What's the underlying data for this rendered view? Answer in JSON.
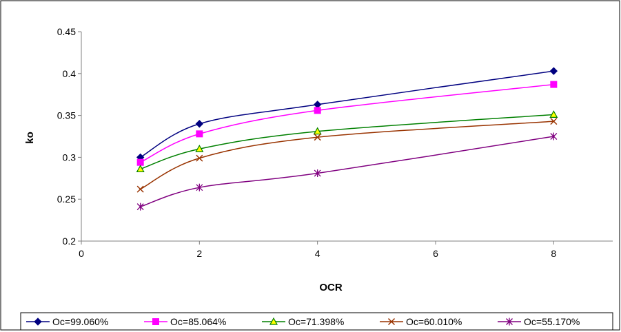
{
  "chart_data": {
    "type": "line",
    "title": "",
    "xlabel": "OCR",
    "ylabel": "ko",
    "xlim": [
      0,
      9
    ],
    "ylim": [
      0.2,
      0.45
    ],
    "x_ticks": [
      0,
      2,
      4,
      6,
      8
    ],
    "x_tick_labels": [
      "0",
      "2",
      "4",
      "6",
      "8"
    ],
    "y_ticks": [
      0.2,
      0.25,
      0.3,
      0.35,
      0.4,
      0.45
    ],
    "y_tick_labels": [
      "0.2",
      "0.25",
      "0.3",
      "0.35",
      "0.4",
      "0.45"
    ],
    "grid": false,
    "legend_position": "bottom",
    "smooth": true,
    "x": [
      1,
      2,
      4,
      8
    ],
    "series": [
      {
        "name": "Oc=99.060%",
        "values": [
          0.3,
          0.34,
          0.363,
          0.403
        ],
        "color": "#000080",
        "marker": "diamond"
      },
      {
        "name": "Oc=85.064%",
        "values": [
          0.294,
          0.328,
          0.356,
          0.387
        ],
        "color": "#FF00FF",
        "marker": "square"
      },
      {
        "name": "Oc=71.398%",
        "values": [
          0.286,
          0.31,
          0.331,
          0.351
        ],
        "color": "#008000",
        "marker": "triangle",
        "marker_fill": "#FFFF00"
      },
      {
        "name": "Oc=60.010%",
        "values": [
          0.262,
          0.299,
          0.324,
          0.343
        ],
        "color": "#993300",
        "marker": "x"
      },
      {
        "name": "Oc=55.170%",
        "values": [
          0.241,
          0.264,
          0.281,
          0.325
        ],
        "color": "#800080",
        "marker": "asterisk"
      }
    ]
  }
}
